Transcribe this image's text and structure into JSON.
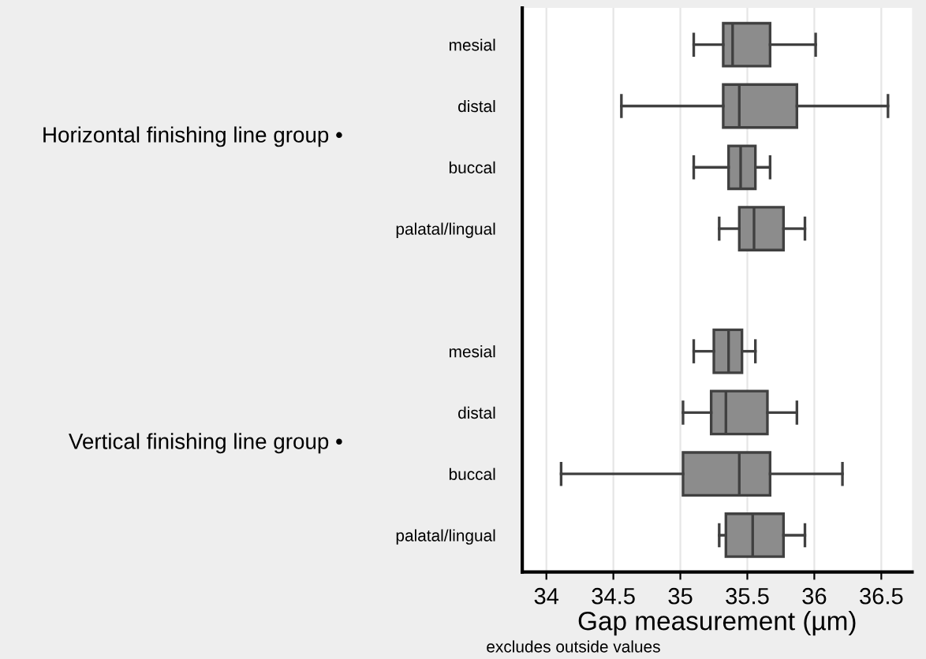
{
  "chart_data": {
    "type": "box",
    "orientation": "horizontal",
    "categories": [
      "mesial",
      "distal",
      "buccal",
      "palatal/lingual",
      null,
      "mesial",
      "distal",
      "buccal",
      "palatal/lingual"
    ],
    "boxes": [
      {
        "low": 35.1,
        "q1": 35.32,
        "median": 35.39,
        "q3": 35.67,
        "high": 36.01
      },
      {
        "low": 34.56,
        "q1": 35.32,
        "median": 35.44,
        "q3": 35.87,
        "high": 36.55
      },
      {
        "low": 35.1,
        "q1": 35.36,
        "median": 35.45,
        "q3": 35.56,
        "high": 35.67
      },
      {
        "low": 35.29,
        "q1": 35.44,
        "median": 35.55,
        "q3": 35.77,
        "high": 35.93
      },
      null,
      {
        "low": 35.1,
        "q1": 35.25,
        "median": 35.36,
        "q3": 35.46,
        "high": 35.56
      },
      {
        "low": 35.02,
        "q1": 35.23,
        "median": 35.34,
        "q3": 35.65,
        "high": 35.87
      },
      {
        "low": 34.11,
        "q1": 35.02,
        "median": 35.44,
        "q3": 35.67,
        "high": 36.21
      },
      {
        "low": 35.29,
        "q1": 35.34,
        "median": 35.54,
        "q3": 35.77,
        "high": 35.93
      }
    ],
    "color": "#8c8c8c",
    "xlim": [
      33.82,
      36.73
    ],
    "xticks": [
      34,
      34.5,
      35,
      35.5,
      36,
      36.5
    ],
    "xlabel": "Gap measurement (µm)",
    "grid": "x",
    "annotations": [
      "Horizontal finishing line group •",
      "Vertical finishing line group •",
      "excludes outside values"
    ]
  }
}
